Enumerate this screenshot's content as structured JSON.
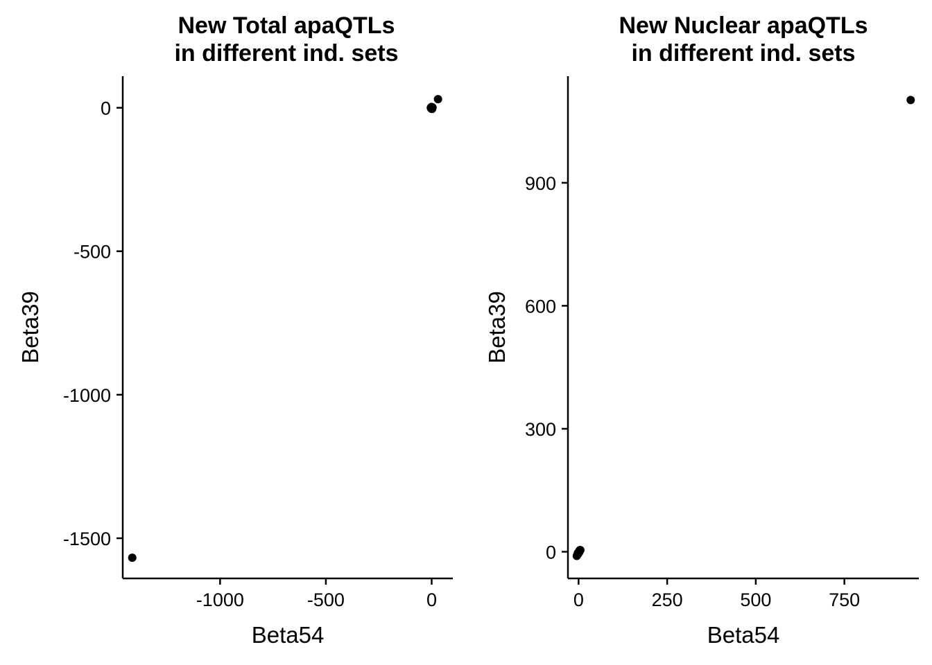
{
  "chart_data": [
    {
      "type": "scatter",
      "title": [
        "New Total apaQTLs",
        "in different ind. sets"
      ],
      "xlabel": "Beta54",
      "ylabel": "Beta39",
      "xlim": [
        -1460,
        100
      ],
      "ylim": [
        -1640,
        110
      ],
      "x_ticks": [
        -1000,
        -500,
        0
      ],
      "x_tick_labels": [
        "-1000",
        "-500",
        "0"
      ],
      "y_ticks": [
        0,
        -500,
        -1000,
        -1500
      ],
      "y_tick_labels": [
        "0",
        "-500",
        "-1000",
        "-1500"
      ],
      "grid": false,
      "point_color": "#000000",
      "points": [
        {
          "x": -1415,
          "y": -1568
        },
        {
          "x": 30,
          "y": 30
        },
        {
          "x": 0,
          "y": 0
        },
        {
          "x": -2,
          "y": -3
        },
        {
          "x": 2,
          "y": 2
        },
        {
          "x": -3,
          "y": 1
        },
        {
          "x": 1,
          "y": -2
        },
        {
          "x": 3,
          "y": -1
        },
        {
          "x": -1,
          "y": 3
        },
        {
          "x": 2,
          "y": -4
        },
        {
          "x": -4,
          "y": 0
        },
        {
          "x": 4,
          "y": 1
        }
      ]
    },
    {
      "type": "scatter",
      "title": [
        "New Nuclear apaQTLs",
        "in different ind. sets"
      ],
      "xlabel": "Beta54",
      "ylabel": "Beta39",
      "xlim": [
        -30,
        960
      ],
      "ylim": [
        -65,
        1160
      ],
      "x_ticks": [
        0,
        250,
        500,
        750
      ],
      "x_tick_labels": [
        "0",
        "250",
        "500",
        "750"
      ],
      "y_ticks": [
        0,
        300,
        600,
        900
      ],
      "y_tick_labels": [
        "0",
        "300",
        "600",
        "900"
      ],
      "grid": false,
      "point_color": "#000000",
      "points": [
        {
          "x": 937,
          "y": 1102
        },
        {
          "x": -5,
          "y": -10
        },
        {
          "x": -3,
          "y": -7
        },
        {
          "x": -1,
          "y": -5
        },
        {
          "x": 0,
          "y": -2
        },
        {
          "x": 1,
          "y": 0
        },
        {
          "x": 2,
          "y": 2
        },
        {
          "x": 3,
          "y": 3
        },
        {
          "x": 4,
          "y": 4
        },
        {
          "x": 5,
          "y": 4
        },
        {
          "x": 2,
          "y": -1
        },
        {
          "x": -2,
          "y": -3
        }
      ]
    }
  ]
}
